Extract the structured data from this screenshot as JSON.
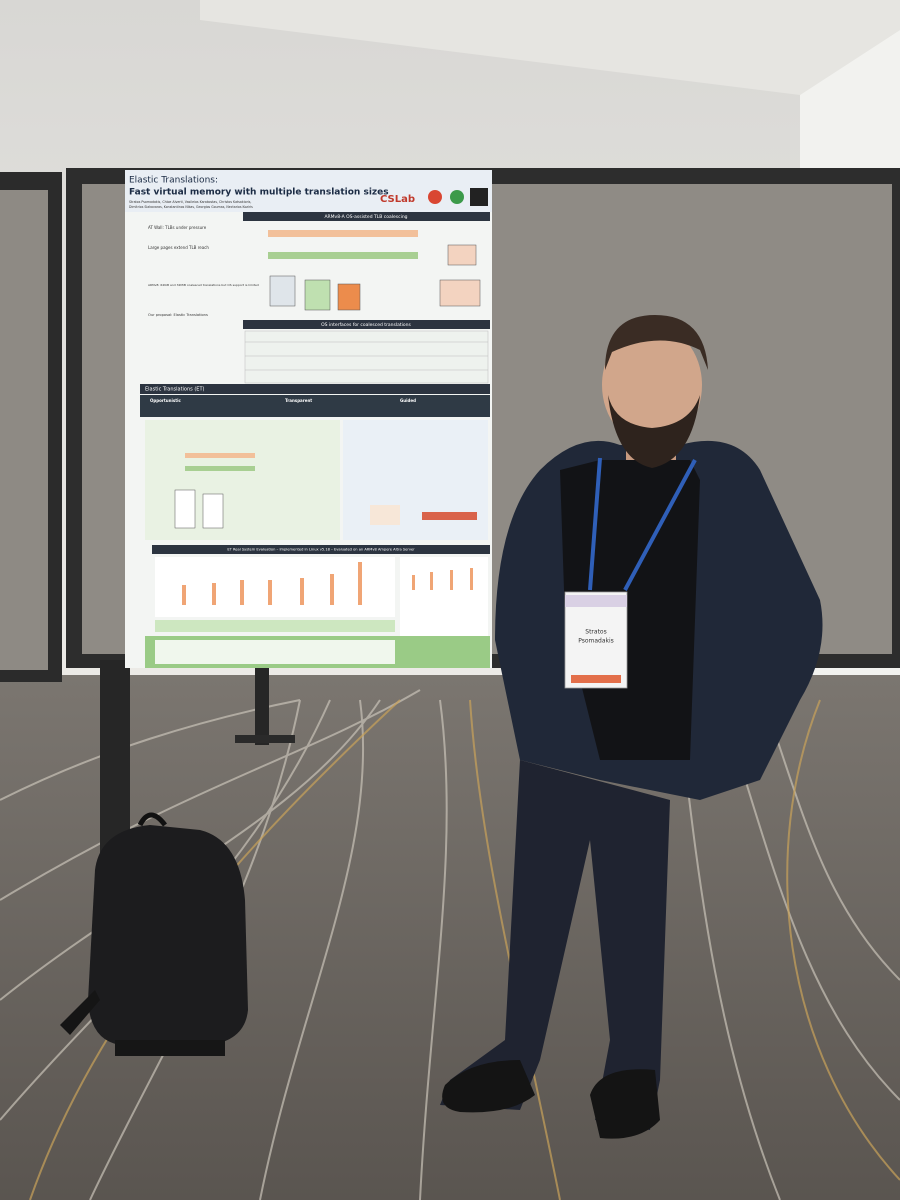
{
  "poster": {
    "title": "Elastic Translations:",
    "subtitle": "Fast virtual memory with multiple translation sizes",
    "authors": [
      "Stratos Psomadakis, Chloe Alverti, Vasileios Karakostas, Christos Katsakioris,",
      "Dimitrios Siakavaras, Konstantinos Nikas, Georgios Goumas, Nectarios Koziris"
    ],
    "logo": "CSLab",
    "left_notes": [
      "AT Wall: TLBs under pressure",
      "Large pages extend TLB reach",
      "ARMv8: 64KiB and 32MiB coalesced translations but OS support is limited",
      "Our proposal: Elastic Translations"
    ],
    "sections": [
      "ARMv8-A OS-assisted TLB coalescing",
      "OS interfaces for coalesced translations",
      "Elastic Translations (ET)",
      "ET Real System Evaluation – Implemented in Linux v5.18 – Evaluated on an ARMv8 Ampere Altra Server"
    ],
    "pillars": [
      "Opportunistic",
      "Transparent",
      "Guided"
    ]
  },
  "badge": {
    "first_name": "Stratos",
    "last_name": "Psomadakis"
  }
}
